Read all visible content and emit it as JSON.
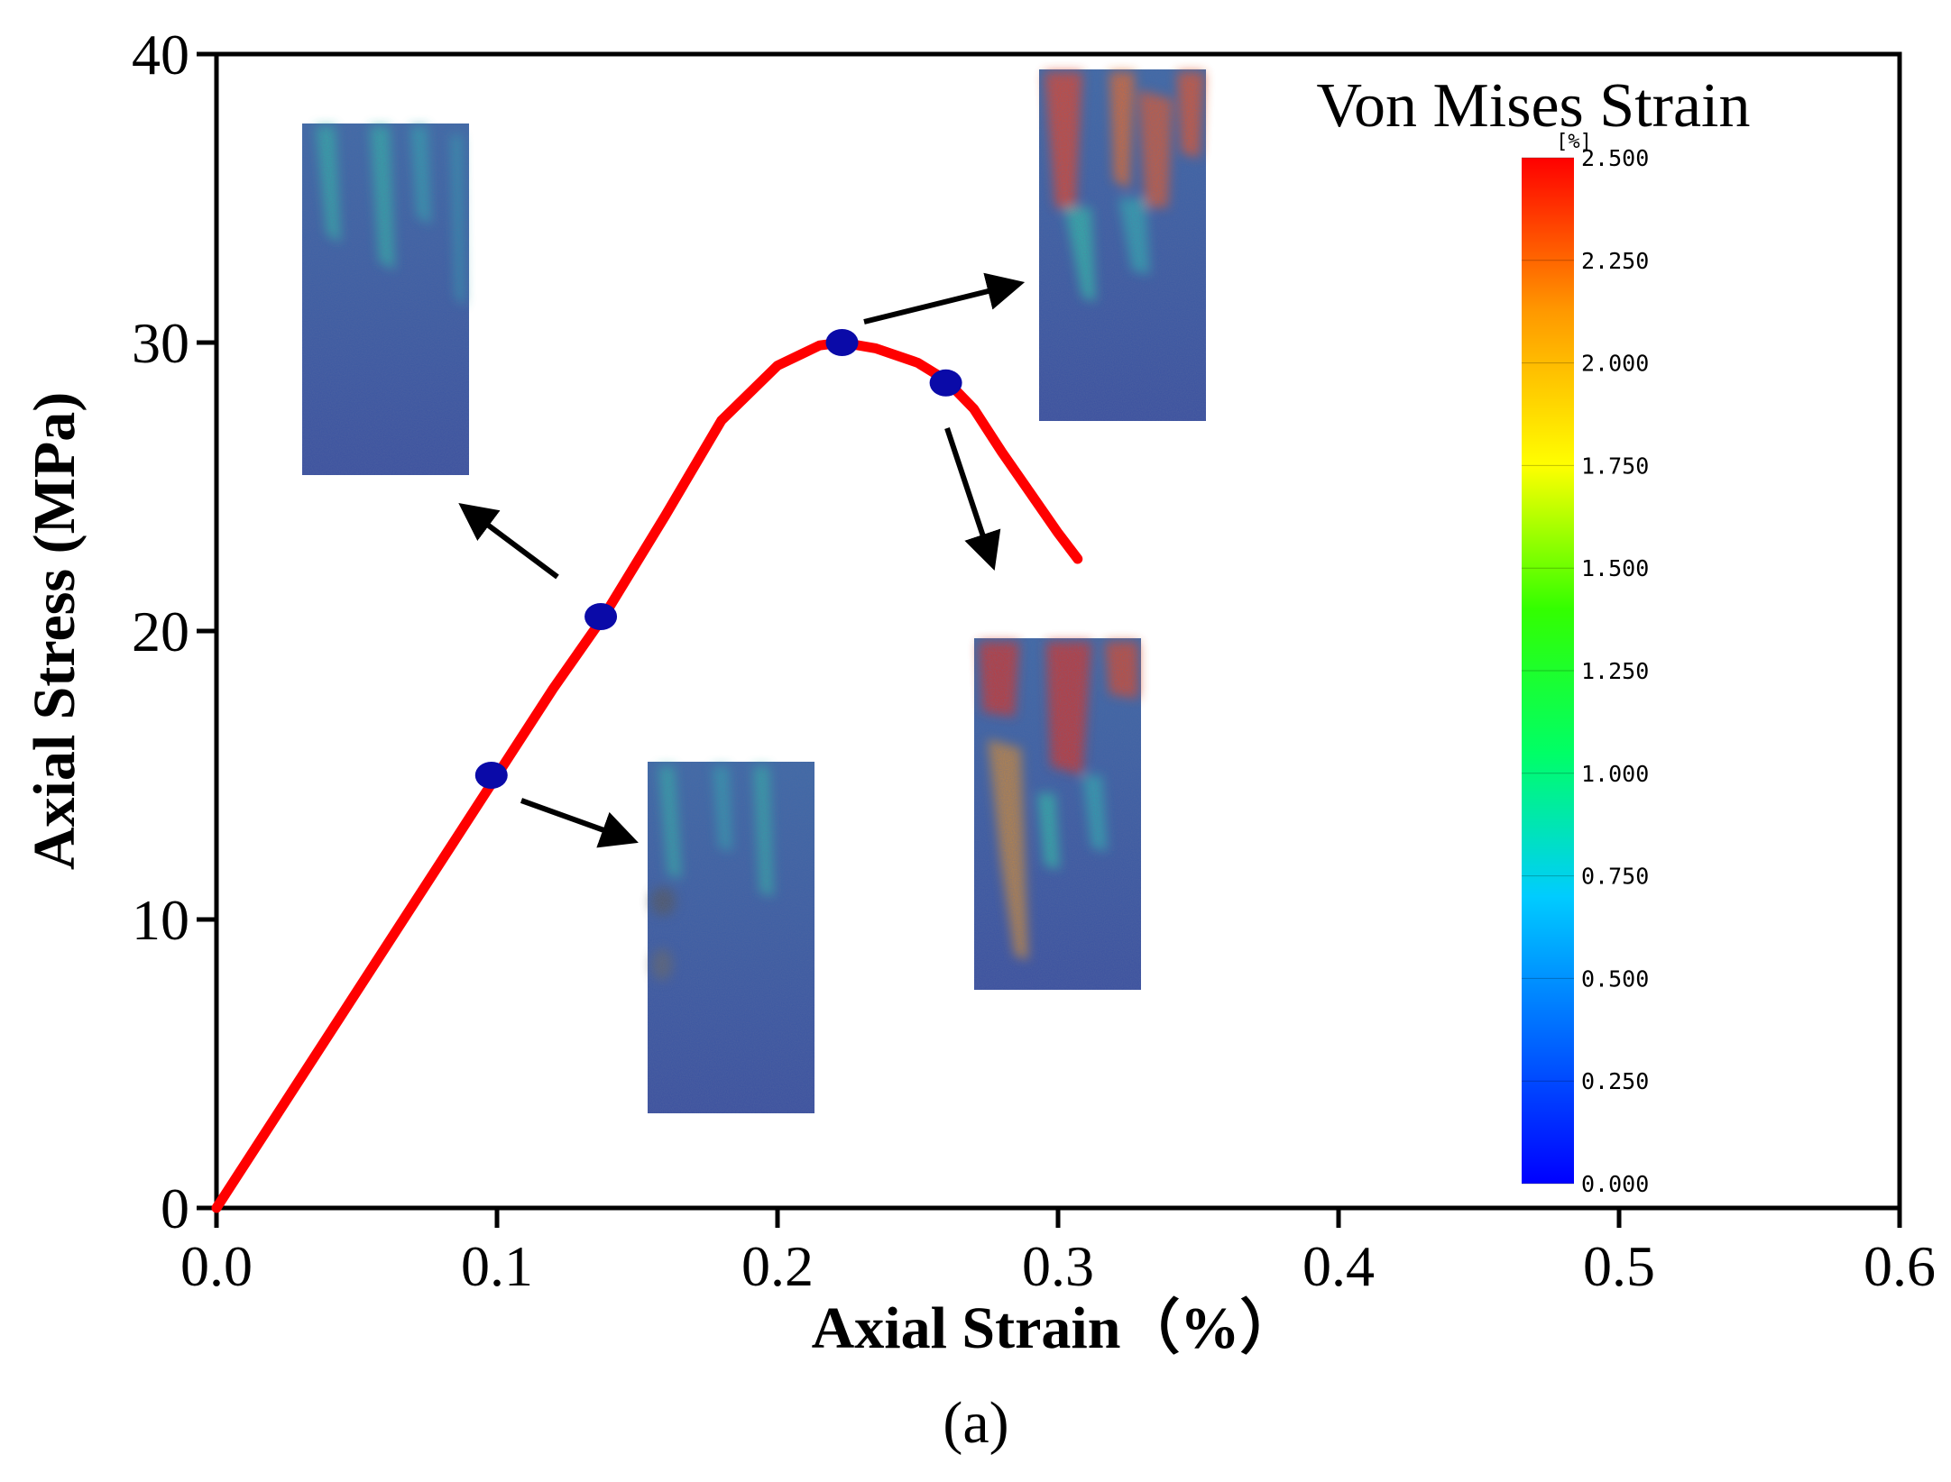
{
  "chart_data": {
    "type": "line",
    "xlabel": "Axial Strain（%）",
    "ylabel": "Axial Stress (MPa)",
    "xlim": [
      0,
      0.6
    ],
    "ylim": [
      0,
      40
    ],
    "xticks": [
      0.0,
      0.1,
      0.2,
      0.3,
      0.4,
      0.5,
      0.6
    ],
    "xtick_labels": [
      "0.0",
      "0.1",
      "0.2",
      "0.3",
      "0.4",
      "0.5",
      "0.6"
    ],
    "yticks": [
      0,
      10,
      20,
      30,
      40
    ],
    "ytick_labels": [
      "0",
      "10",
      "20",
      "30",
      "40"
    ],
    "caption": "(a)",
    "series": [
      {
        "name": "Axial Stress",
        "color": "#ff0000",
        "x": [
          0,
          0.02,
          0.05,
          0.08,
          0.1,
          0.12,
          0.138,
          0.16,
          0.18,
          0.2,
          0.215,
          0.223,
          0.235,
          0.25,
          0.26,
          0.27,
          0.28,
          0.29,
          0.3,
          0.307
        ],
        "y": [
          0,
          3,
          7.5,
          12,
          15,
          18,
          20.5,
          24,
          27.3,
          29.2,
          29.9,
          30.0,
          29.8,
          29.3,
          28.7,
          27.7,
          26.2,
          24.8,
          23.4,
          22.5
        ]
      }
    ],
    "markers": [
      {
        "x": 0.098,
        "y": 15.0
      },
      {
        "x": 0.137,
        "y": 20.5
      },
      {
        "x": 0.223,
        "y": 30.0
      },
      {
        "x": 0.26,
        "y": 28.6
      }
    ],
    "marker_color": "#0a0aa8",
    "colorbar": {
      "title": "Von Mises Strain",
      "unit": "[%]",
      "ticks": [
        "2.500",
        "2.250",
        "2.000",
        "1.750",
        "1.500",
        "1.250",
        "1.000",
        "0.750",
        "0.500",
        "0.250",
        "0.000"
      ],
      "colors": [
        "#0000ff",
        "#0066ff",
        "#00ccff",
        "#00ff66",
        "#33ff00",
        "#ffff00",
        "#ff9900",
        "#ff0000"
      ]
    },
    "annotations": [
      {
        "type": "image",
        "label": "strain-field-at-20.5-MPa"
      },
      {
        "type": "image",
        "label": "strain-field-at-15-MPa"
      },
      {
        "type": "image",
        "label": "strain-field-at-peak"
      },
      {
        "type": "image",
        "label": "strain-field-post-peak"
      }
    ]
  }
}
